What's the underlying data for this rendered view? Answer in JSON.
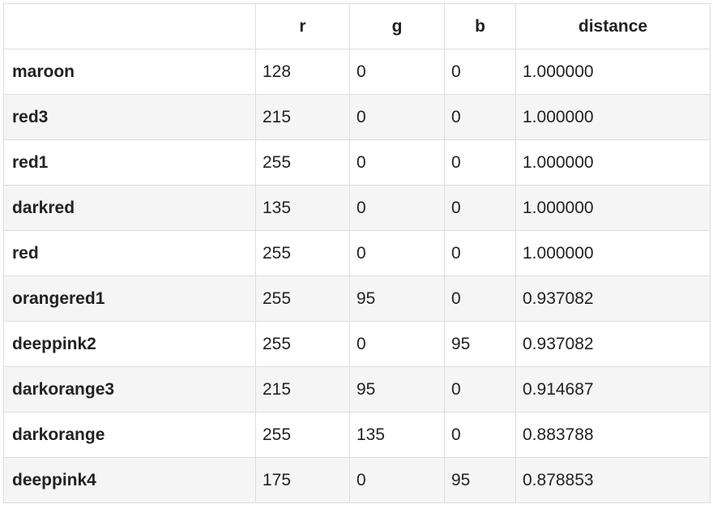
{
  "table": {
    "columns": [
      "",
      "r",
      "g",
      "b",
      "distance"
    ],
    "rows": [
      {
        "name": "maroon",
        "r": "128",
        "g": "0",
        "b": "0",
        "distance": "1.000000"
      },
      {
        "name": "red3",
        "r": "215",
        "g": "0",
        "b": "0",
        "distance": "1.000000"
      },
      {
        "name": "red1",
        "r": "255",
        "g": "0",
        "b": "0",
        "distance": "1.000000"
      },
      {
        "name": "darkred",
        "r": "135",
        "g": "0",
        "b": "0",
        "distance": "1.000000"
      },
      {
        "name": "red",
        "r": "255",
        "g": "0",
        "b": "0",
        "distance": "1.000000"
      },
      {
        "name": "orangered1",
        "r": "255",
        "g": "95",
        "b": "0",
        "distance": "0.937082"
      },
      {
        "name": "deeppink2",
        "r": "255",
        "g": "0",
        "b": "95",
        "distance": "0.937082"
      },
      {
        "name": "darkorange3",
        "r": "215",
        "g": "95",
        "b": "0",
        "distance": "0.914687"
      },
      {
        "name": "darkorange",
        "r": "255",
        "g": "135",
        "b": "0",
        "distance": "0.883788"
      },
      {
        "name": "deeppink4",
        "r": "175",
        "g": "0",
        "b": "95",
        "distance": "0.878853"
      }
    ]
  },
  "colors": {
    "border": "#dddddd",
    "stripe": "#f5f5f5",
    "text": "#222222"
  }
}
